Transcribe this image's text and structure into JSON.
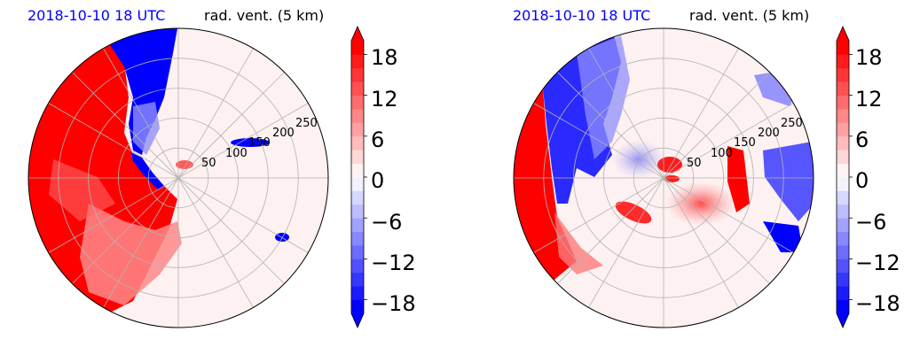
{
  "chart_data": [
    {
      "type": "polar-contourf",
      "title_left": "2018-10-10 18 UTC",
      "title_right": "rad. vent. (5 km)",
      "r_ticks": [
        50,
        100,
        150,
        200,
        250
      ],
      "r_max": 250,
      "colorbar": {
        "ticks": [
          "18",
          "12",
          "6",
          "0",
          "−6",
          "−12",
          "−18"
        ],
        "range": [
          -20,
          20
        ],
        "levels": 20,
        "extend": "both",
        "colors": {
          "negative": "#0000ff",
          "zero": "#ffffff",
          "positive": "#ff0000"
        }
      }
    },
    {
      "type": "polar-contourf",
      "title_left": "2018-10-10 18 UTC",
      "title_right": "rad. vent. (5 km)",
      "r_ticks": [
        50,
        100,
        150,
        200,
        250
      ],
      "r_max": 250,
      "colorbar": {
        "ticks": [
          "18",
          "12",
          "6",
          "0",
          "−6",
          "−12",
          "−18"
        ],
        "range": [
          -20,
          20
        ],
        "levels": 20,
        "extend": "both",
        "colors": {
          "negative": "#0000ff",
          "zero": "#ffffff",
          "positive": "#ff0000"
        }
      }
    }
  ]
}
